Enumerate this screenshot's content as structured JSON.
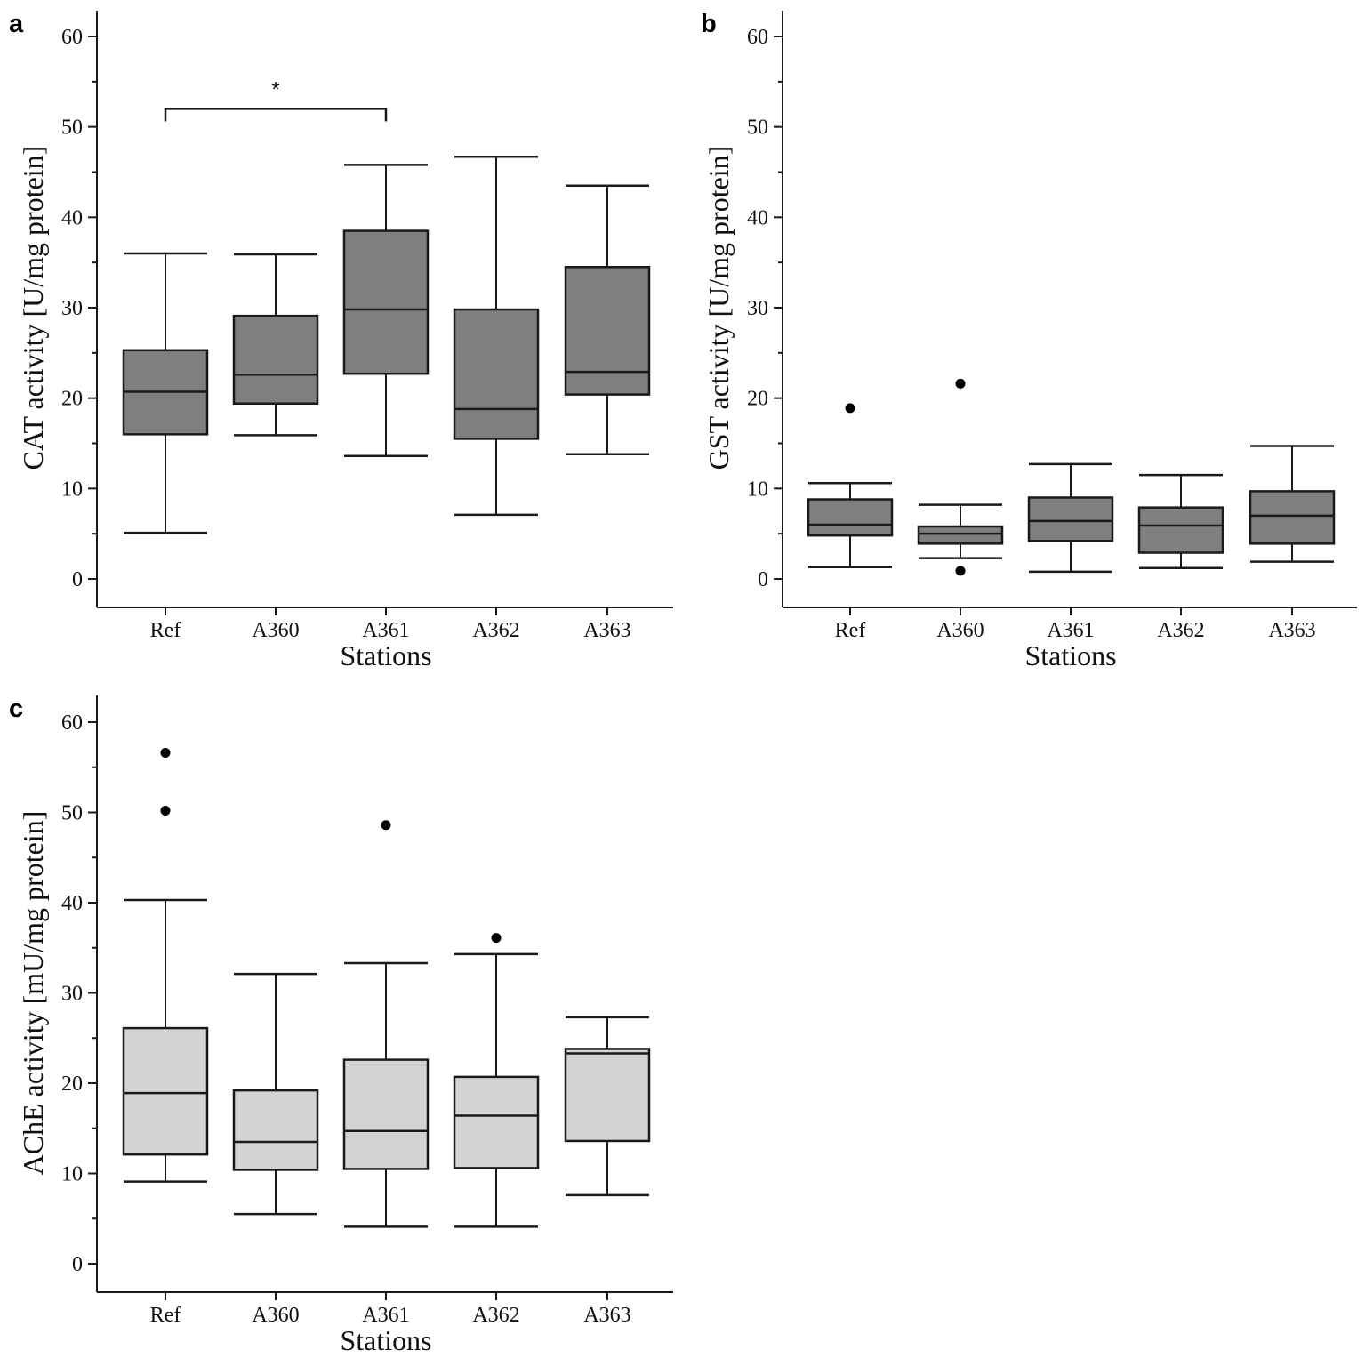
{
  "figure": {
    "background": "#ffffff",
    "line_color": "#1a1a1a",
    "outlier_color": "#000000"
  },
  "chart_data": [
    {
      "panel": "a",
      "type": "boxplot",
      "xlabel": "Stations",
      "ylabel": "CAT activity [U/mg protein]",
      "ylim": [
        0,
        60
      ],
      "yticks": [
        0,
        10,
        20,
        30,
        40,
        50,
        60
      ],
      "box_color": "#7f7f7f",
      "categories": [
        "Ref",
        "A360",
        "A361",
        "A362",
        "A363"
      ],
      "boxes": [
        {
          "min": 5.1,
          "q1": 16.0,
          "median": 20.7,
          "q3": 25.3,
          "max": 36.0,
          "outliers": []
        },
        {
          "min": 15.9,
          "q1": 19.4,
          "median": 22.6,
          "q3": 29.1,
          "max": 35.9,
          "outliers": []
        },
        {
          "min": 13.6,
          "q1": 22.7,
          "median": 29.8,
          "q3": 38.5,
          "max": 45.8,
          "outliers": []
        },
        {
          "min": 7.1,
          "q1": 15.5,
          "median": 18.8,
          "q3": 29.8,
          "max": 46.7,
          "outliers": []
        },
        {
          "min": 13.8,
          "q1": 20.4,
          "median": 22.9,
          "q3": 34.5,
          "max": 43.5,
          "outliers": []
        }
      ],
      "significance": [
        {
          "from": "Ref",
          "to": "A361",
          "label": "*",
          "y": 52
        }
      ]
    },
    {
      "panel": "b",
      "type": "boxplot",
      "xlabel": "Stations",
      "ylabel": "GST activity [U/mg protein]",
      "ylim": [
        0,
        60
      ],
      "yticks": [
        0,
        10,
        20,
        30,
        40,
        50,
        60
      ],
      "box_color": "#7f7f7f",
      "categories": [
        "Ref",
        "A360",
        "A361",
        "A362",
        "A363"
      ],
      "boxes": [
        {
          "min": 1.3,
          "q1": 4.8,
          "median": 6.0,
          "q3": 8.8,
          "max": 10.6,
          "outliers": [
            18.9
          ]
        },
        {
          "min": 2.3,
          "q1": 3.9,
          "median": 5.0,
          "q3": 5.8,
          "max": 8.2,
          "outliers": [
            21.6,
            0.9
          ]
        },
        {
          "min": 0.8,
          "q1": 4.2,
          "median": 6.4,
          "q3": 9.0,
          "max": 12.7,
          "outliers": []
        },
        {
          "min": 1.2,
          "q1": 2.9,
          "median": 5.9,
          "q3": 7.9,
          "max": 11.5,
          "outliers": []
        },
        {
          "min": 1.9,
          "q1": 3.9,
          "median": 7.0,
          "q3": 9.7,
          "max": 14.7,
          "outliers": []
        }
      ],
      "significance": []
    },
    {
      "panel": "c",
      "type": "boxplot",
      "xlabel": "Stations",
      "ylabel": "AChE activity [mU/mg protein]",
      "ylim": [
        0,
        60
      ],
      "yticks": [
        0,
        10,
        20,
        30,
        40,
        50,
        60
      ],
      "box_color": "#d3d3d3",
      "categories": [
        "Ref",
        "A360",
        "A361",
        "A362",
        "A363"
      ],
      "boxes": [
        {
          "min": 9.1,
          "q1": 12.1,
          "median": 18.9,
          "q3": 26.1,
          "max": 40.3,
          "outliers": [
            56.6,
            50.2
          ]
        },
        {
          "min": 5.5,
          "q1": 10.4,
          "median": 13.5,
          "q3": 19.2,
          "max": 32.1,
          "outliers": []
        },
        {
          "min": 4.1,
          "q1": 10.5,
          "median": 14.7,
          "q3": 22.6,
          "max": 33.3,
          "outliers": [
            48.6
          ]
        },
        {
          "min": 4.1,
          "q1": 10.6,
          "median": 16.4,
          "q3": 20.7,
          "max": 34.3,
          "outliers": [
            36.1
          ]
        },
        {
          "min": 7.6,
          "q1": 13.6,
          "median": 23.3,
          "q3": 23.8,
          "max": 27.3,
          "outliers": []
        }
      ],
      "significance": []
    }
  ]
}
